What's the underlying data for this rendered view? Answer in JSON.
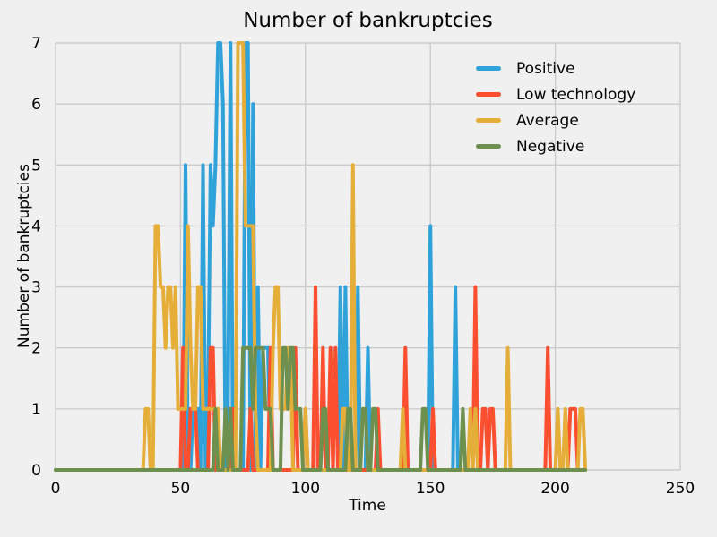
{
  "chart_data": {
    "type": "line",
    "title": "Number of bankruptcies",
    "xlabel": "Time",
    "ylabel": "Number of bankruptcies",
    "background_color": "#f0f0f0",
    "grid_color": "#cbcbcb",
    "text_color": "#000000",
    "grid": true,
    "legend_position": "upper right",
    "xlim": [
      0,
      250
    ],
    "ylim": [
      0,
      7
    ],
    "xticks": [
      0,
      50,
      100,
      150,
      200,
      250
    ],
    "yticks": [
      0,
      1,
      2,
      3,
      4,
      5,
      6,
      7
    ],
    "t_last": 212,
    "encoding": "series values are 0 at every integer time 0..t_last except the sparse [time,value] spikes listed",
    "series": [
      {
        "name": "Positive",
        "color": "#30a2da",
        "spikes": [
          [
            52,
            5
          ],
          [
            55,
            1
          ],
          [
            56,
            1
          ],
          [
            57,
            1
          ],
          [
            59,
            5
          ],
          [
            61,
            1
          ],
          [
            62,
            5
          ],
          [
            63,
            4
          ],
          [
            64,
            5
          ],
          [
            65,
            7
          ],
          [
            66,
            7
          ],
          [
            67,
            6
          ],
          [
            69,
            1
          ],
          [
            70,
            7
          ],
          [
            76,
            7
          ],
          [
            77,
            7
          ],
          [
            79,
            6
          ],
          [
            81,
            3
          ],
          [
            83,
            2
          ],
          [
            84,
            2
          ],
          [
            85,
            2
          ],
          [
            114,
            3
          ],
          [
            116,
            3
          ],
          [
            121,
            3
          ],
          [
            125,
            2
          ],
          [
            150,
            4
          ],
          [
            160,
            3
          ]
        ]
      },
      {
        "name": "Low technology",
        "color": "#fc4f30",
        "spikes": [
          [
            51,
            2
          ],
          [
            54,
            1
          ],
          [
            55,
            1
          ],
          [
            56,
            1
          ],
          [
            62,
            2
          ],
          [
            63,
            2
          ],
          [
            65,
            1
          ],
          [
            71,
            1
          ],
          [
            78,
            1
          ],
          [
            86,
            2
          ],
          [
            96,
            2
          ],
          [
            100,
            1
          ],
          [
            104,
            3
          ],
          [
            107,
            2
          ],
          [
            110,
            2
          ],
          [
            112,
            2
          ],
          [
            129,
            1
          ],
          [
            140,
            2
          ],
          [
            151,
            1
          ],
          [
            168,
            3
          ],
          [
            171,
            1
          ],
          [
            172,
            1
          ],
          [
            174,
            1
          ],
          [
            175,
            1
          ],
          [
            197,
            2
          ],
          [
            206,
            1
          ],
          [
            207,
            1
          ],
          [
            208,
            1
          ]
        ]
      },
      {
        "name": "Average",
        "color": "#e5ae38",
        "spikes": [
          [
            36,
            1
          ],
          [
            37,
            1
          ],
          [
            40,
            4
          ],
          [
            41,
            4
          ],
          [
            42,
            3
          ],
          [
            43,
            3
          ],
          [
            44,
            2
          ],
          [
            45,
            3
          ],
          [
            46,
            3
          ],
          [
            47,
            2
          ],
          [
            48,
            3
          ],
          [
            49,
            1
          ],
          [
            50,
            1
          ],
          [
            51,
            1
          ],
          [
            52,
            1
          ],
          [
            53,
            4
          ],
          [
            54,
            2
          ],
          [
            55,
            1
          ],
          [
            56,
            1
          ],
          [
            57,
            3
          ],
          [
            58,
            3
          ],
          [
            59,
            1
          ],
          [
            60,
            1
          ],
          [
            61,
            1
          ],
          [
            62,
            1
          ],
          [
            63,
            1
          ],
          [
            64,
            1
          ],
          [
            65,
            1
          ],
          [
            73,
            7
          ],
          [
            74,
            7
          ],
          [
            75,
            7
          ],
          [
            76,
            4
          ],
          [
            77,
            4
          ],
          [
            78,
            4
          ],
          [
            79,
            4
          ],
          [
            80,
            1
          ],
          [
            87,
            2
          ],
          [
            88,
            3
          ],
          [
            89,
            3
          ],
          [
            90,
            1
          ],
          [
            91,
            1
          ],
          [
            92,
            1
          ],
          [
            93,
            2
          ],
          [
            94,
            2
          ],
          [
            100,
            1
          ],
          [
            115,
            1
          ],
          [
            116,
            1
          ],
          [
            119,
            5
          ],
          [
            123,
            1
          ],
          [
            124,
            1
          ],
          [
            139,
            1
          ],
          [
            166,
            1
          ],
          [
            168,
            1
          ],
          [
            181,
            2
          ],
          [
            201,
            1
          ],
          [
            204,
            1
          ],
          [
            210,
            1
          ],
          [
            211,
            1
          ]
        ]
      },
      {
        "name": "Negative",
        "color": "#6d904f",
        "spikes": [
          [
            64,
            1
          ],
          [
            68,
            1
          ],
          [
            70,
            1
          ],
          [
            75,
            2
          ],
          [
            76,
            2
          ],
          [
            77,
            2
          ],
          [
            78,
            2
          ],
          [
            79,
            1
          ],
          [
            80,
            2
          ],
          [
            81,
            2
          ],
          [
            82,
            2
          ],
          [
            83,
            2
          ],
          [
            84,
            1
          ],
          [
            85,
            1
          ],
          [
            86,
            1
          ],
          [
            91,
            2
          ],
          [
            92,
            2
          ],
          [
            93,
            1
          ],
          [
            94,
            2
          ],
          [
            95,
            2
          ],
          [
            96,
            1
          ],
          [
            97,
            1
          ],
          [
            98,
            1
          ],
          [
            107,
            1
          ],
          [
            108,
            1
          ],
          [
            117,
            1
          ],
          [
            118,
            1
          ],
          [
            123,
            1
          ],
          [
            124,
            1
          ],
          [
            127,
            1
          ],
          [
            128,
            1
          ],
          [
            147,
            1
          ],
          [
            148,
            1
          ],
          [
            163,
            1
          ]
        ]
      }
    ],
    "legend": [
      {
        "label": "Positive",
        "color": "#30a2da"
      },
      {
        "label": "Low technology",
        "color": "#fc4f30"
      },
      {
        "label": "Average",
        "color": "#e5ae38"
      },
      {
        "label": "Negative",
        "color": "#6d904f"
      }
    ]
  }
}
